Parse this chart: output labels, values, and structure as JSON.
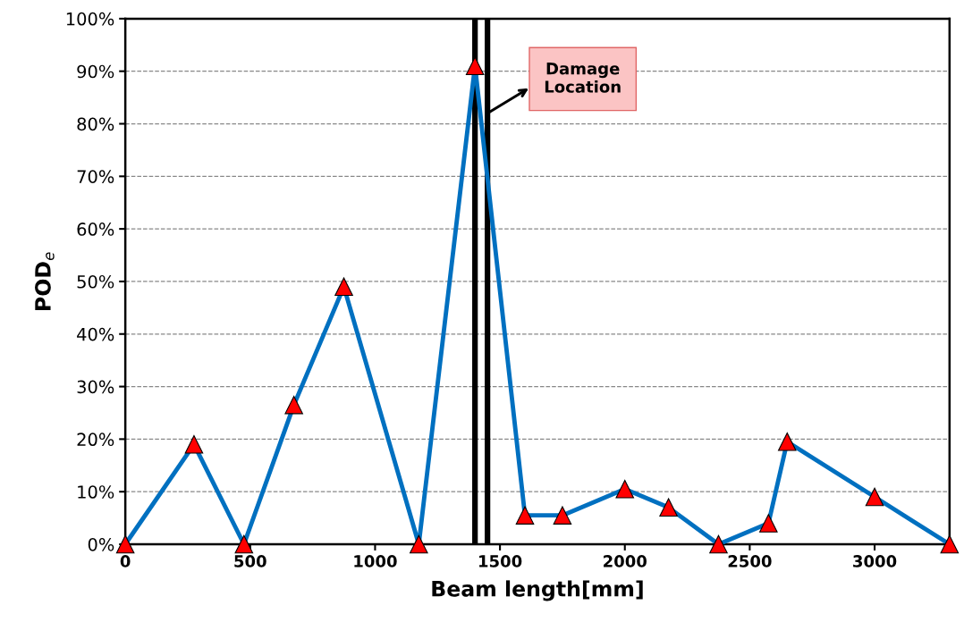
{
  "chart_data": {
    "type": "line",
    "xlabel": "Beam length[mm]",
    "ylabel": "POD$_{e}$",
    "x": [
      0,
      275,
      475,
      675,
      875,
      1175,
      1400,
      1600,
      1750,
      2000,
      2175,
      2375,
      2575,
      2650,
      3000,
      3300
    ],
    "series": [
      {
        "color": "#0070c0",
        "values": [
          0,
          19,
          0,
          26.5,
          49,
          0,
          91,
          5.5,
          5.5,
          10.5,
          7,
          0,
          4,
          19.5,
          9,
          0
        ]
      }
    ],
    "marker": "triangle",
    "line_style": "solid",
    "grid": "y",
    "legend": false,
    "xlim": [
      0,
      3300
    ],
    "xticks": [
      0,
      500,
      1000,
      1500,
      2000,
      2500,
      3000
    ],
    "ylim": [
      0,
      100
    ],
    "yticks": [
      {
        "value": 0,
        "label": "0%"
      },
      {
        "value": 10,
        "label": "10%"
      },
      {
        "value": 20,
        "label": "20%"
      },
      {
        "value": 30,
        "label": "30%"
      },
      {
        "value": 40,
        "label": "40%"
      },
      {
        "value": 50,
        "label": "50%"
      },
      {
        "value": 60,
        "label": "60%"
      },
      {
        "value": 70,
        "label": "70%"
      },
      {
        "value": 80,
        "label": "80%"
      },
      {
        "value": 90,
        "label": "90%"
      },
      {
        "value": 100,
        "label": "100%"
      }
    ],
    "ref_lines": [
      {
        "axis": "x",
        "value": 1400,
        "color": "#000000"
      },
      {
        "axis": "x",
        "value": 1450,
        "color": "#000000"
      }
    ],
    "annotations": [
      {
        "text": "Damage\nLocation",
        "x": 1450,
        "y": 82
      }
    ]
  }
}
